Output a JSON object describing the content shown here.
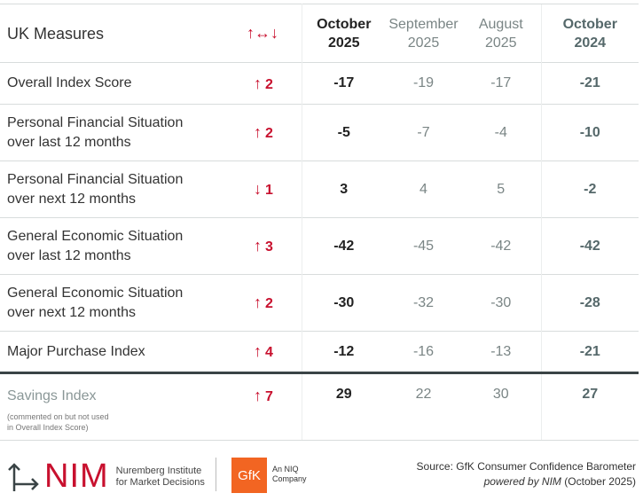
{
  "header": {
    "title": "UK Measures",
    "change_symbol": "↑↔↓",
    "columns": [
      {
        "line1": "October",
        "line2": "2025"
      },
      {
        "line1": "September",
        "line2": "2025"
      },
      {
        "line1": "August",
        "line2": "2025"
      },
      {
        "line1": "October",
        "line2": "2024"
      }
    ]
  },
  "rows": [
    {
      "label1": "Overall Index Score",
      "label2": "",
      "dir": "↑",
      "change": "2",
      "values": [
        "-17",
        "-19",
        "-17",
        "-21"
      ]
    },
    {
      "label1": "Personal Financial Situation",
      "label2": "over last 12 months",
      "dir": "↑",
      "change": "2",
      "values": [
        "-5",
        "-7",
        "-4",
        "-10"
      ]
    },
    {
      "label1": "Personal Financial Situation",
      "label2": "over next 12 months",
      "dir": "↓",
      "change": "1",
      "values": [
        "3",
        "4",
        "5",
        "-2"
      ]
    },
    {
      "label1": "General Economic Situation",
      "label2": "over last 12 months",
      "dir": "↑",
      "change": "3",
      "values": [
        "-42",
        "-45",
        "-42",
        "-42"
      ]
    },
    {
      "label1": "General Economic Situation",
      "label2": "over next 12 months",
      "dir": "↑",
      "change": "2",
      "values": [
        "-30",
        "-32",
        "-30",
        "-28"
      ]
    },
    {
      "label1": "Major Purchase Index",
      "label2": "",
      "dir": "↑",
      "change": "4",
      "values": [
        "-12",
        "-16",
        "-13",
        "-21"
      ]
    }
  ],
  "savings": {
    "label": "Savings Index",
    "note1": "(commented on but not used",
    "note2": "in Overall Index Score)",
    "dir": "↑",
    "change": "7",
    "values": [
      "29",
      "22",
      "30",
      "27"
    ]
  },
  "footer": {
    "nim_logo": "NIM",
    "nim_sub1": "Nuremberg Institute",
    "nim_sub2": "for Market Decisions",
    "gfk_logo": "GfK",
    "niq1": "An NIQ",
    "niq2": "Company",
    "source": "Source: GfK Consumer Confidence Barometer",
    "powered": "powered by NIM",
    "powered_date": "(October 2025)"
  }
}
